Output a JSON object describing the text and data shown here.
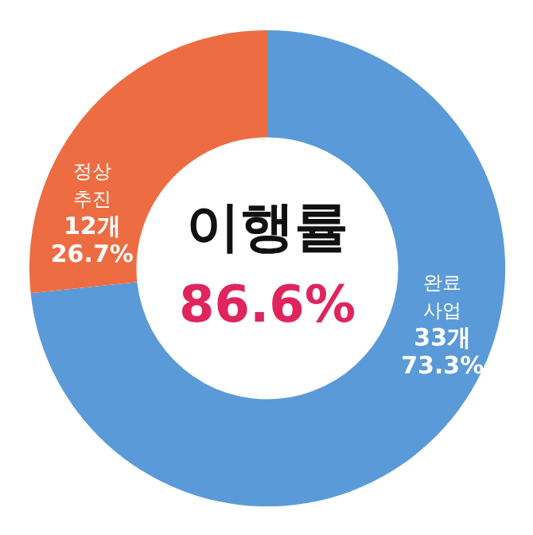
{
  "chart_data": {
    "type": "donut",
    "title": "이행률",
    "annotations": [
      "86.6%"
    ],
    "categories": [
      "완료 사업",
      "정상 추진"
    ],
    "values": [
      33,
      12
    ],
    "colors": [
      "#5b9ad8",
      "#ee6c42"
    ],
    "value_labels": [
      "33개 73.3%",
      "12개 26.7%"
    ]
  }
}
